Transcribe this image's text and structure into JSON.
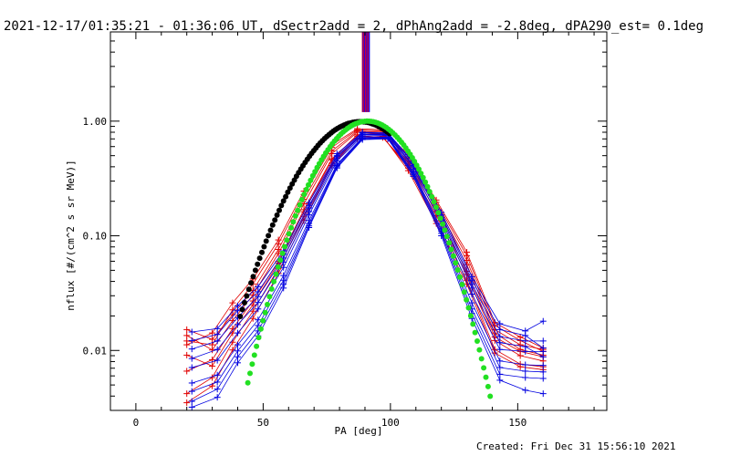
{
  "chart_data": {
    "type": "line",
    "title": "2021-12-17/01:35:21 - 01:36:06 UT, dSectr2add = 2, dPhAng2add = -2.8deg, dPA290_est=  0.1deg",
    "xlabel": "PA [deg]",
    "ylabel": "nflux [#/(cm^2 s sr MeV)]",
    "footer": "Created: Fri Dec 31 15:56:10 2021",
    "xlim": [
      -10,
      185
    ],
    "ylim": [
      0.003,
      6
    ],
    "yscale": "log",
    "x_ticks": [
      0,
      50,
      100,
      150
    ],
    "y_ticks": [
      {
        "value": 0.01,
        "label": "0.01"
      },
      {
        "value": 0.1,
        "label": "0.10"
      },
      {
        "value": 1.0,
        "label": "1.00"
      }
    ],
    "vertical_markers": {
      "colors": [
        "#ff0000",
        "#0000ff"
      ],
      "x": [
        89.0,
        89.3,
        89.6,
        89.9,
        90.2,
        90.5,
        90.8,
        91.1,
        91.4,
        91.7
      ],
      "y_range": [
        1.2,
        6
      ]
    },
    "red_series": [
      {
        "x": [
          20,
          30,
          38,
          46,
          56,
          66,
          77,
          87,
          97,
          107,
          118,
          130,
          141,
          151,
          160
        ],
        "y": [
          0.0152,
          0.0125,
          0.0205,
          0.0334,
          0.076,
          0.208,
          0.55,
          0.82,
          0.8,
          0.47,
          0.185,
          0.061,
          0.0152,
          0.0112,
          0.0102
        ]
      },
      {
        "x": [
          20,
          30,
          38,
          46,
          56,
          66,
          77,
          87,
          97,
          107,
          118,
          130,
          141,
          151,
          160
        ],
        "y": [
          0.0066,
          0.0083,
          0.0155,
          0.027,
          0.06,
          0.169,
          0.47,
          0.74,
          0.72,
          0.41,
          0.15,
          0.046,
          0.0122,
          0.009,
          0.0081
        ]
      },
      {
        "x": [
          20,
          30,
          38,
          46,
          56,
          66,
          77,
          87,
          97,
          107,
          118,
          130,
          141,
          151,
          160
        ],
        "y": [
          0.0112,
          0.0142,
          0.026,
          0.042,
          0.092,
          0.245,
          0.62,
          0.86,
          0.84,
          0.51,
          0.205,
          0.072,
          0.0175,
          0.0131,
          0.0105
        ]
      },
      {
        "x": [
          20,
          30,
          38,
          46,
          56,
          66,
          77,
          87,
          97,
          107,
          118,
          130,
          141,
          151,
          160
        ],
        "y": [
          0.0042,
          0.0058,
          0.0118,
          0.022,
          0.052,
          0.148,
          0.43,
          0.71,
          0.73,
          0.39,
          0.135,
          0.041,
          0.0102,
          0.0076,
          0.0072
        ]
      },
      {
        "x": [
          20,
          30,
          38,
          46,
          56,
          66,
          77,
          87,
          97,
          107,
          118,
          130,
          141,
          151,
          160
        ],
        "y": [
          0.0135,
          0.0101,
          0.0182,
          0.0305,
          0.07,
          0.19,
          0.52,
          0.8,
          0.77,
          0.45,
          0.175,
          0.056,
          0.0142,
          0.0102,
          0.0091
        ]
      },
      {
        "x": [
          20,
          30,
          38,
          46,
          56,
          66,
          77,
          87,
          97,
          107,
          118,
          130,
          141,
          151,
          160
        ],
        "y": [
          0.0091,
          0.0073,
          0.0142,
          0.025,
          0.058,
          0.162,
          0.46,
          0.76,
          0.78,
          0.43,
          0.162,
          0.049,
          0.0131,
          0.0098,
          0.0088
        ]
      },
      {
        "x": [
          20,
          30,
          38,
          46,
          56,
          66,
          77,
          87,
          97,
          107,
          118,
          130,
          141,
          151,
          160
        ],
        "y": [
          0.0035,
          0.0049,
          0.0101,
          0.019,
          0.047,
          0.136,
          0.41,
          0.7,
          0.74,
          0.37,
          0.128,
          0.038,
          0.0095,
          0.0072,
          0.0068
        ]
      },
      {
        "x": [
          20,
          30,
          38,
          46,
          56,
          66,
          77,
          87,
          97,
          107,
          118,
          130,
          141,
          151,
          160
        ],
        "y": [
          0.0121,
          0.0112,
          0.0226,
          0.038,
          0.085,
          0.228,
          0.59,
          0.84,
          0.82,
          0.49,
          0.196,
          0.067,
          0.0165,
          0.0122,
          0.0098
        ]
      }
    ],
    "blue_series": [
      {
        "x": [
          22,
          32,
          40,
          48,
          58,
          68,
          79,
          89,
          99,
          109,
          120,
          132,
          143,
          153,
          160
        ],
        "y": [
          0.0145,
          0.0155,
          0.0245,
          0.036,
          0.074,
          0.195,
          0.52,
          0.8,
          0.79,
          0.44,
          0.16,
          0.044,
          0.0171,
          0.0148,
          0.018
        ]
      },
      {
        "x": [
          22,
          32,
          40,
          48,
          58,
          68,
          79,
          89,
          99,
          109,
          120,
          132,
          143,
          153,
          160
        ],
        "y": [
          0.0103,
          0.0121,
          0.0194,
          0.0295,
          0.064,
          0.175,
          0.49,
          0.77,
          0.77,
          0.41,
          0.145,
          0.038,
          0.0132,
          0.0121,
          0.0121
        ]
      },
      {
        "x": [
          22,
          32,
          40,
          48,
          58,
          68,
          79,
          89,
          99,
          109,
          120,
          132,
          143,
          153,
          160
        ],
        "y": [
          0.0071,
          0.0082,
          0.0142,
          0.023,
          0.053,
          0.152,
          0.45,
          0.74,
          0.75,
          0.38,
          0.128,
          0.031,
          0.0102,
          0.0098,
          0.0098
        ]
      },
      {
        "x": [
          22,
          32,
          40,
          48,
          58,
          68,
          79,
          89,
          99,
          109,
          120,
          132,
          143,
          153,
          160
        ],
        "y": [
          0.0052,
          0.0061,
          0.0112,
          0.0185,
          0.045,
          0.136,
          0.42,
          0.72,
          0.73,
          0.36,
          0.115,
          0.026,
          0.0081,
          0.0075,
          0.0074
        ]
      },
      {
        "x": [
          22,
          32,
          40,
          48,
          58,
          68,
          79,
          89,
          99,
          109,
          120,
          132,
          143,
          153,
          160
        ],
        "y": [
          0.0036,
          0.0046,
          0.0088,
          0.0148,
          0.038,
          0.122,
          0.4,
          0.7,
          0.71,
          0.34,
          0.105,
          0.021,
          0.0062,
          0.0058,
          0.0057
        ]
      },
      {
        "x": [
          22,
          32,
          40,
          48,
          58,
          68,
          79,
          89,
          99,
          109,
          120,
          132,
          143,
          153,
          160
        ],
        "y": [
          0.0122,
          0.0138,
          0.0222,
          0.0325,
          0.069,
          0.184,
          0.5,
          0.79,
          0.78,
          0.43,
          0.152,
          0.041,
          0.0152,
          0.0135,
          0.0105
        ]
      },
      {
        "x": [
          22,
          32,
          40,
          48,
          58,
          68,
          79,
          89,
          99,
          109,
          120,
          132,
          143,
          153,
          160
        ],
        "y": [
          0.0085,
          0.0102,
          0.0168,
          0.0262,
          0.059,
          0.163,
          0.47,
          0.76,
          0.76,
          0.4,
          0.138,
          0.035,
          0.0117,
          0.0108,
          0.0088
        ]
      },
      {
        "x": [
          22,
          32,
          40,
          48,
          58,
          68,
          79,
          89,
          99,
          109,
          120,
          132,
          143,
          153,
          160
        ],
        "y": [
          0.0044,
          0.0053,
          0.0099,
          0.0165,
          0.041,
          0.128,
          0.41,
          0.71,
          0.72,
          0.35,
          0.11,
          0.023,
          0.0071,
          0.0066,
          0.0065
        ]
      },
      {
        "x": [
          22,
          32,
          40,
          48,
          58,
          68,
          79,
          89,
          99,
          109,
          120,
          132,
          143,
          153,
          160
        ],
        "y": [
          0.0032,
          0.0039,
          0.0078,
          0.0134,
          0.035,
          0.118,
          0.39,
          0.69,
          0.7,
          0.33,
          0.1,
          0.019,
          0.0055,
          0.0045,
          0.0042
        ]
      }
    ],
    "black_fit": {
      "center": 88,
      "sigma": 16.8,
      "peak": 0.99,
      "x_range": [
        41,
        100
      ]
    },
    "green_fit": {
      "center": 91,
      "sigma": 14.5,
      "peak": 1.0,
      "x_range": [
        44,
        140
      ]
    }
  }
}
